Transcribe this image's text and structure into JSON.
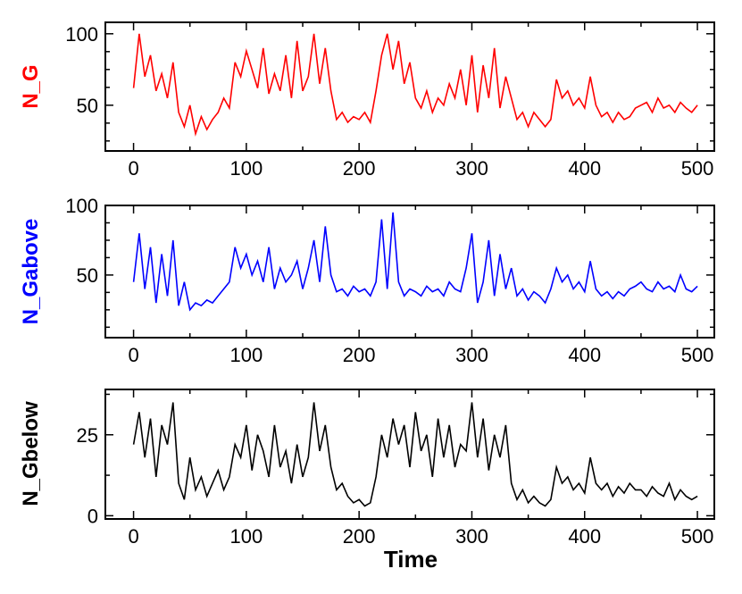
{
  "chart_data": [
    {
      "type": "line",
      "ylabel": "N_G",
      "color": "#ff0000",
      "ylim": [
        18,
        108
      ],
      "yticks": [
        50,
        100
      ],
      "xticks": [
        0,
        100,
        200,
        300,
        400,
        500
      ],
      "xlim": [
        -25,
        515
      ],
      "x": [
        0,
        5,
        10,
        15,
        20,
        25,
        30,
        35,
        40,
        45,
        50,
        55,
        60,
        65,
        70,
        75,
        80,
        85,
        90,
        95,
        100,
        105,
        110,
        115,
        120,
        125,
        130,
        135,
        140,
        145,
        150,
        155,
        160,
        165,
        170,
        175,
        180,
        185,
        190,
        195,
        200,
        205,
        210,
        215,
        220,
        225,
        230,
        235,
        240,
        245,
        250,
        255,
        260,
        265,
        270,
        275,
        280,
        285,
        290,
        295,
        300,
        305,
        310,
        315,
        320,
        325,
        330,
        335,
        340,
        345,
        350,
        355,
        360,
        365,
        370,
        375,
        380,
        385,
        390,
        395,
        400,
        405,
        410,
        415,
        420,
        425,
        430,
        435,
        440,
        445,
        450,
        455,
        460,
        465,
        470,
        475,
        480,
        485,
        490,
        495,
        500
      ],
      "values": [
        62,
        100,
        70,
        85,
        60,
        72,
        55,
        80,
        45,
        35,
        50,
        30,
        42,
        33,
        40,
        45,
        55,
        48,
        80,
        70,
        88,
        75,
        62,
        90,
        58,
        72,
        60,
        85,
        55,
        95,
        60,
        70,
        100,
        65,
        90,
        60,
        40,
        45,
        38,
        42,
        40,
        45,
        38,
        60,
        85,
        100,
        75,
        95,
        65,
        80,
        55,
        48,
        60,
        45,
        55,
        50,
        65,
        55,
        75,
        50,
        85,
        45,
        78,
        55,
        90,
        48,
        70,
        55,
        40,
        45,
        35,
        45,
        40,
        35,
        40,
        68,
        55,
        60,
        50,
        55,
        48,
        70,
        50,
        42,
        45,
        38,
        45,
        40,
        42,
        48,
        50,
        52,
        45,
        55,
        48,
        50,
        45,
        52,
        48,
        45,
        50
      ]
    },
    {
      "type": "line",
      "ylabel": "N_Gabove",
      "color": "#0000ff",
      "ylim": [
        5,
        100
      ],
      "yticks": [
        50,
        100
      ],
      "xticks": [
        0,
        100,
        200,
        300,
        400,
        500
      ],
      "xlim": [
        -25,
        515
      ],
      "x": [
        0,
        5,
        10,
        15,
        20,
        25,
        30,
        35,
        40,
        45,
        50,
        55,
        60,
        65,
        70,
        75,
        80,
        85,
        90,
        95,
        100,
        105,
        110,
        115,
        120,
        125,
        130,
        135,
        140,
        145,
        150,
        155,
        160,
        165,
        170,
        175,
        180,
        185,
        190,
        195,
        200,
        205,
        210,
        215,
        220,
        225,
        230,
        235,
        240,
        245,
        250,
        255,
        260,
        265,
        270,
        275,
        280,
        285,
        290,
        295,
        300,
        305,
        310,
        315,
        320,
        325,
        330,
        335,
        340,
        345,
        350,
        355,
        360,
        365,
        370,
        375,
        380,
        385,
        390,
        395,
        400,
        405,
        410,
        415,
        420,
        425,
        430,
        435,
        440,
        445,
        450,
        455,
        460,
        465,
        470,
        475,
        480,
        485,
        490,
        495,
        500
      ],
      "values": [
        45,
        80,
        40,
        70,
        30,
        65,
        35,
        75,
        28,
        45,
        25,
        30,
        28,
        32,
        30,
        35,
        40,
        45,
        70,
        55,
        65,
        50,
        60,
        45,
        70,
        40,
        55,
        45,
        50,
        60,
        40,
        55,
        75,
        45,
        85,
        50,
        38,
        40,
        35,
        42,
        38,
        40,
        35,
        45,
        90,
        40,
        95,
        45,
        35,
        40,
        38,
        35,
        42,
        38,
        40,
        35,
        45,
        40,
        38,
        55,
        80,
        30,
        45,
        75,
        35,
        65,
        40,
        55,
        35,
        40,
        32,
        38,
        35,
        30,
        40,
        55,
        45,
        50,
        40,
        45,
        38,
        60,
        40,
        35,
        38,
        33,
        38,
        35,
        40,
        42,
        45,
        40,
        38,
        45,
        40,
        42,
        38,
        50,
        40,
        38,
        42
      ]
    },
    {
      "type": "line",
      "ylabel": "N_Gbelow",
      "color": "#000000",
      "ylim": [
        -1,
        39
      ],
      "yticks": [
        0,
        25
      ],
      "xticks": [
        0,
        100,
        200,
        300,
        400,
        500
      ],
      "xlim": [
        -25,
        515
      ],
      "xlabel": "Time",
      "x": [
        0,
        5,
        10,
        15,
        20,
        25,
        30,
        35,
        40,
        45,
        50,
        55,
        60,
        65,
        70,
        75,
        80,
        85,
        90,
        95,
        100,
        105,
        110,
        115,
        120,
        125,
        130,
        135,
        140,
        145,
        150,
        155,
        160,
        165,
        170,
        175,
        180,
        185,
        190,
        195,
        200,
        205,
        210,
        215,
        220,
        225,
        230,
        235,
        240,
        245,
        250,
        255,
        260,
        265,
        270,
        275,
        280,
        285,
        290,
        295,
        300,
        305,
        310,
        315,
        320,
        325,
        330,
        335,
        340,
        345,
        350,
        355,
        360,
        365,
        370,
        375,
        380,
        385,
        390,
        395,
        400,
        405,
        410,
        415,
        420,
        425,
        430,
        435,
        440,
        445,
        450,
        455,
        460,
        465,
        470,
        475,
        480,
        485,
        490,
        495,
        500
      ],
      "values": [
        22,
        32,
        18,
        30,
        12,
        28,
        22,
        35,
        10,
        5,
        18,
        8,
        12,
        6,
        10,
        14,
        8,
        12,
        22,
        18,
        28,
        14,
        25,
        20,
        12,
        28,
        15,
        20,
        10,
        22,
        12,
        18,
        35,
        20,
        28,
        15,
        8,
        10,
        6,
        4,
        5,
        3,
        4,
        12,
        25,
        18,
        30,
        22,
        28,
        15,
        32,
        20,
        25,
        12,
        30,
        18,
        28,
        15,
        22,
        20,
        35,
        18,
        30,
        14,
        25,
        18,
        28,
        10,
        5,
        8,
        4,
        6,
        4,
        3,
        5,
        15,
        10,
        12,
        8,
        10,
        7,
        18,
        10,
        8,
        10,
        6,
        9,
        7,
        10,
        8,
        8,
        6,
        9,
        7,
        6,
        10,
        5,
        8,
        6,
        5,
        6
      ]
    }
  ]
}
